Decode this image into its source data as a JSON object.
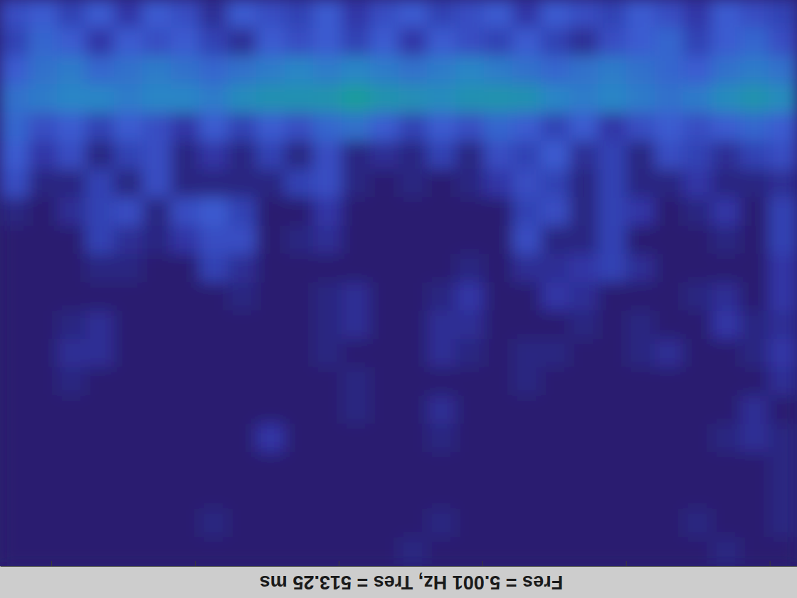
{
  "chart_data": {
    "type": "heatmap",
    "xlabel": "Fres = 5.001 Hz, Tres = 513.25 ms",
    "xlim": [
      0.287,
      11.38
    ],
    "xticks": [
      1,
      3,
      5,
      7,
      9,
      11
    ],
    "tick_labels": false,
    "zlim": [
      0,
      1
    ],
    "cells": [
      [
        0.25,
        0.3,
        0.2,
        0.3,
        0.15,
        0.3,
        0.25,
        0.1,
        0.3,
        0.25,
        0.2,
        0.3,
        0.15,
        0.25,
        0.3,
        0.2,
        0.25,
        0.3,
        0.15,
        0.3,
        0.25,
        0.2,
        0.3,
        0.25,
        0.15,
        0.3,
        0.25,
        0.2
      ],
      [
        0.2,
        0.35,
        0.3,
        0.15,
        0.3,
        0.25,
        0.3,
        0.2,
        0.1,
        0.3,
        0.25,
        0.3,
        0.2,
        0.3,
        0.15,
        0.3,
        0.25,
        0.2,
        0.3,
        0.2,
        0.1,
        0.25,
        0.3,
        0.35,
        0.2,
        0.3,
        0.35,
        0.25
      ],
      [
        0.3,
        0.4,
        0.45,
        0.35,
        0.4,
        0.45,
        0.4,
        0.35,
        0.4,
        0.45,
        0.5,
        0.45,
        0.5,
        0.45,
        0.4,
        0.45,
        0.5,
        0.45,
        0.4,
        0.35,
        0.4,
        0.45,
        0.4,
        0.35,
        0.3,
        0.4,
        0.45,
        0.4
      ],
      [
        0.4,
        0.45,
        0.5,
        0.5,
        0.45,
        0.5,
        0.5,
        0.45,
        0.55,
        0.6,
        0.6,
        0.62,
        0.7,
        0.62,
        0.58,
        0.55,
        0.6,
        0.62,
        0.6,
        0.5,
        0.45,
        0.5,
        0.45,
        0.4,
        0.45,
        0.55,
        0.62,
        0.55
      ],
      [
        0.35,
        0.25,
        0.3,
        0.2,
        0.3,
        0.25,
        0.15,
        0.3,
        0.2,
        0.3,
        0.25,
        0.35,
        0.4,
        0.3,
        0.2,
        0.3,
        0.25,
        0.35,
        0.3,
        0.2,
        0.3,
        0.15,
        0.25,
        0.3,
        0.25,
        0.3,
        0.35,
        0.3
      ],
      [
        0.3,
        0.15,
        0.25,
        0.05,
        0.2,
        0.25,
        0.05,
        0.15,
        0.05,
        0.2,
        0.05,
        0.25,
        0.05,
        0.1,
        0.05,
        0.2,
        0.05,
        0.25,
        0.2,
        0.3,
        0.1,
        0.2,
        0.05,
        0.25,
        0.2,
        0.1,
        0.2,
        0.25
      ],
      [
        0.25,
        0.05,
        0.05,
        0.2,
        0.05,
        0.25,
        0.05,
        0.05,
        0.05,
        0.05,
        0.2,
        0.25,
        0.05,
        0,
        0.05,
        0,
        0.05,
        0.15,
        0.25,
        0.2,
        0.05,
        0.2,
        0.05,
        0.05,
        0.15,
        0.05,
        0.05,
        0.1
      ],
      [
        0.05,
        0,
        0.1,
        0.2,
        0.25,
        0.05,
        0.25,
        0.3,
        0.2,
        0,
        0,
        0.15,
        0,
        0,
        0,
        0,
        0,
        0,
        0.2,
        0.25,
        0.05,
        0.2,
        0.15,
        0,
        0.05,
        0.15,
        0,
        0.2
      ],
      [
        0,
        0,
        0,
        0.2,
        0.1,
        0.05,
        0.15,
        0.25,
        0.25,
        0,
        0.05,
        0.1,
        0,
        0,
        0,
        0,
        0,
        0,
        0.25,
        0.05,
        0.05,
        0.2,
        0,
        0,
        0,
        0.05,
        0,
        0.2
      ],
      [
        0,
        0,
        0,
        0.05,
        0.05,
        0,
        0,
        0.2,
        0.1,
        0,
        0,
        0,
        0,
        0,
        0,
        0,
        0.05,
        0,
        0.1,
        0.1,
        0.15,
        0.2,
        0.1,
        0,
        0,
        0,
        0,
        0.15
      ],
      [
        0,
        0,
        0,
        0,
        0,
        0,
        0,
        0,
        0.05,
        0,
        0,
        0.05,
        0.1,
        0,
        0,
        0.05,
        0.15,
        0,
        0,
        0.15,
        0.1,
        0,
        0,
        0,
        0.05,
        0.1,
        0,
        0.15
      ],
      [
        0,
        0,
        0.05,
        0.1,
        0,
        0,
        0,
        0,
        0,
        0,
        0,
        0.05,
        0.1,
        0,
        0,
        0.1,
        0.1,
        0,
        0,
        0,
        0.05,
        0,
        0.05,
        0,
        0,
        0.15,
        0.05,
        0.1
      ],
      [
        0,
        0,
        0.1,
        0.1,
        0,
        0,
        0,
        0,
        0,
        0,
        0,
        0.05,
        0,
        0,
        0,
        0.1,
        0.05,
        0,
        0.05,
        0.05,
        0,
        0,
        0.05,
        0.1,
        0,
        0,
        0.05,
        0.15
      ],
      [
        0,
        0,
        0.05,
        0,
        0,
        0,
        0,
        0,
        0,
        0,
        0,
        0,
        0.05,
        0,
        0,
        0,
        0,
        0,
        0.05,
        0,
        0,
        0,
        0,
        0,
        0,
        0,
        0,
        0.1
      ],
      [
        0,
        0,
        0,
        0,
        0,
        0,
        0,
        0,
        0,
        0,
        0,
        0,
        0.05,
        0,
        0,
        0.1,
        0,
        0,
        0,
        0,
        0,
        0,
        0,
        0,
        0,
        0,
        0.1,
        0
      ],
      [
        0,
        0,
        0,
        0,
        0,
        0,
        0,
        0,
        0,
        0.15,
        0,
        0,
        0,
        0,
        0,
        0.05,
        0,
        0,
        0,
        0,
        0,
        0,
        0,
        0,
        0,
        0.05,
        0.1,
        0.05
      ],
      [
        0,
        0,
        0,
        0,
        0,
        0,
        0,
        0,
        0,
        0,
        0,
        0,
        0,
        0,
        0,
        0,
        0,
        0,
        0,
        0,
        0,
        0,
        0,
        0,
        0,
        0,
        0,
        0.05
      ],
      [
        0,
        0,
        0,
        0,
        0,
        0,
        0,
        0,
        0,
        0,
        0,
        0,
        0,
        0,
        0,
        0,
        0,
        0,
        0,
        0,
        0,
        0,
        0,
        0,
        0,
        0,
        0,
        0.05
      ],
      [
        0,
        0,
        0,
        0,
        0,
        0,
        0,
        0.05,
        0,
        0,
        0,
        0,
        0,
        0,
        0,
        0.05,
        0,
        0,
        0,
        0,
        0,
        0,
        0,
        0,
        0.05,
        0,
        0,
        0.05
      ],
      [
        0,
        0,
        0,
        0,
        0,
        0,
        0,
        0,
        0,
        0,
        0,
        0,
        0,
        0,
        0.05,
        0,
        0,
        0,
        0,
        0,
        0,
        0,
        0,
        0,
        0,
        0.05,
        0,
        0
      ]
    ]
  }
}
